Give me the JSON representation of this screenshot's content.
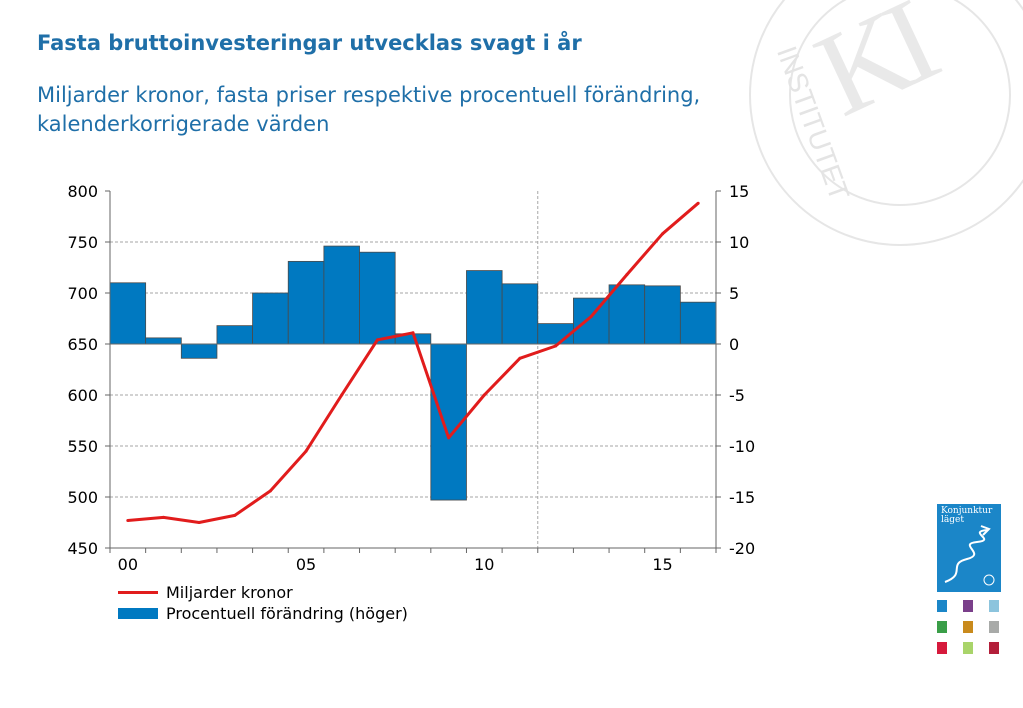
{
  "title": "Fasta bruttoinvesteringar utvecklas svagt i år",
  "subtitle": "Miljarder kronor, fasta priser respektive procentuell förändring, kalenderkorrigerade värden",
  "watermark": {
    "letters": "KI",
    "ring_text": "INSTITUTET",
    "color": "#e6e6e6"
  },
  "chart_data": {
    "type": "bar",
    "x": [
      "00",
      "01",
      "02",
      "03",
      "04",
      "05",
      "06",
      "07",
      "08",
      "09",
      "10",
      "11",
      "12",
      "13",
      "14",
      "15",
      "16"
    ],
    "x_tick_labels": [
      "00",
      "05",
      "10",
      "15"
    ],
    "left_axis": {
      "ylim": [
        450,
        800
      ],
      "ticks": [
        "800",
        "750",
        "700",
        "650",
        "600",
        "550",
        "500",
        "450"
      ]
    },
    "right_axis": {
      "ylim": [
        -20,
        15
      ],
      "ticks": [
        "15",
        "10",
        "5",
        "0",
        "-5",
        "-10",
        "-15",
        "-20"
      ]
    },
    "grid": true,
    "forecast_divider_after": "11",
    "series": [
      {
        "name": "Miljarder kronor",
        "type": "line",
        "axis": "left",
        "color": "#e11c1c",
        "values": [
          477,
          480,
          475,
          482,
          506,
          545,
          600,
          654,
          661,
          558,
          600,
          636,
          648,
          677,
          718,
          758,
          788
        ]
      },
      {
        "name": "Procentuell förändring (höger)",
        "type": "bar",
        "axis": "right",
        "color": "#0079c1",
        "values": [
          6.0,
          0.6,
          -1.4,
          1.8,
          5.0,
          8.1,
          9.6,
          9.0,
          1.0,
          -15.3,
          7.2,
          5.9,
          2.0,
          4.5,
          5.8,
          5.7,
          4.1
        ]
      }
    ],
    "legend": "bottom-left"
  },
  "sidebar": {
    "cover_title_line1": "Konjunktur",
    "cover_title_line2": "läget",
    "cover_color": "#1b86c8",
    "thumb_colors": [
      "#1b86c8",
      "#7a3f8a",
      "#8cc4dd",
      "#3a9e48",
      "#c98a1c",
      "#a8aaa8",
      "#d61a3c",
      "#a9d46a",
      "#b31f3a"
    ]
  }
}
